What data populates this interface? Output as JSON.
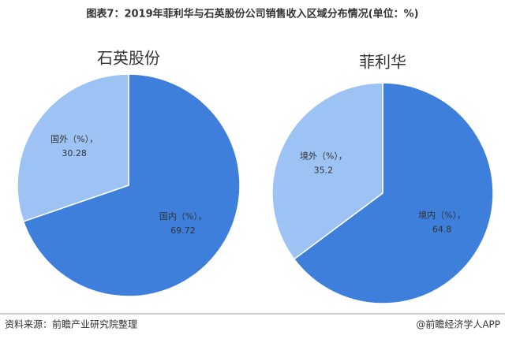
{
  "header": {
    "title": "图表7：2019年菲利华与石英股份公司销售收入区域分布情况(单位：%)"
  },
  "chart_data": [
    {
      "type": "pie",
      "title": "石英股份",
      "categories": [
        "国内（%），",
        "国外（%），"
      ],
      "values": [
        69.72,
        30.28
      ],
      "colors": [
        "#3f7fdc",
        "#9dc3f5"
      ]
    },
    {
      "type": "pie",
      "title": "菲利华",
      "categories": [
        "境内（%），",
        "境外（%），"
      ],
      "values": [
        64.8,
        35.2
      ],
      "colors": [
        "#3f7fdc",
        "#9dc3f5"
      ]
    }
  ],
  "footer": {
    "source": "资料来源：前瞻产业研究院整理",
    "brand": "@前瞻经济学人APP"
  }
}
